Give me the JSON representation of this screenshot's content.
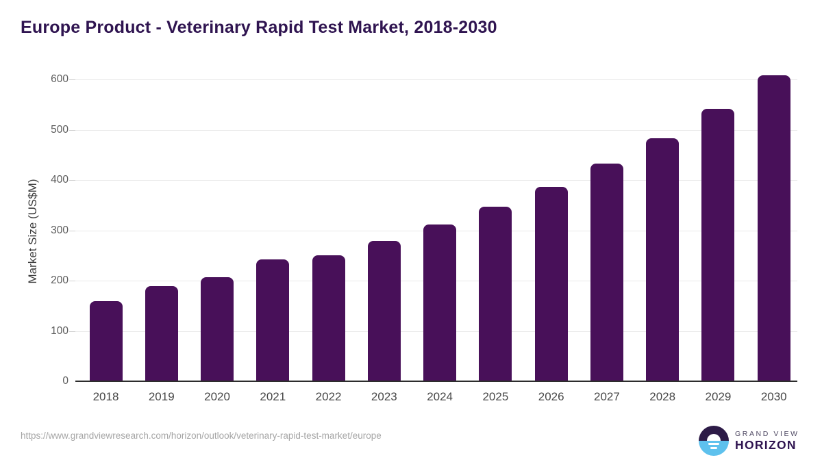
{
  "chart_data": {
    "type": "bar",
    "title": "Europe Product - Veterinary Rapid Test Market, 2018-2030",
    "xlabel": "",
    "ylabel": "Market Size (US$M)",
    "categories": [
      "2018",
      "2019",
      "2020",
      "2021",
      "2022",
      "2023",
      "2024",
      "2025",
      "2026",
      "2027",
      "2028",
      "2029",
      "2030"
    ],
    "values": [
      158,
      188,
      206,
      241,
      249,
      277,
      310,
      345,
      385,
      431,
      482,
      540,
      607
    ],
    "ylim": [
      0,
      600
    ],
    "yticks": [
      0,
      100,
      200,
      300,
      400,
      500,
      600
    ],
    "grid": true,
    "legend_position": "none",
    "bar_color": "#481059"
  },
  "colors": {
    "title": "#2f1450",
    "bar": "#481059",
    "gridline": "#e9e9e9",
    "axis_line": "#2d2d2d",
    "tick_label": "#5c5c5c",
    "logo_purple": "#2d1b47",
    "logo_blue": "#5ec1ed"
  },
  "footer": {
    "source_url": "https://www.grandviewresearch.com/horizon/outlook/veterinary-rapid-test-market/europe",
    "logo": {
      "line1": "GRAND VIEW",
      "line2": "HORIZON"
    }
  }
}
